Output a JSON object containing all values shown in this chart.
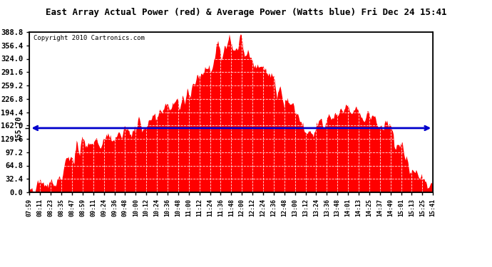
{
  "title": "East Array Actual Power (red) & Average Power (Watts blue) Fri Dec 24 15:41",
  "copyright": "Copyright 2010 Cartronics.com",
  "average_power": 155.7,
  "ylim": [
    0.0,
    388.8
  ],
  "yticks": [
    0.0,
    32.4,
    64.8,
    97.2,
    129.6,
    162.0,
    194.4,
    226.8,
    259.2,
    291.6,
    324.0,
    356.4,
    388.8
  ],
  "fill_color": "#FF0000",
  "line_color": "#0000CC",
  "background_color": "#FFFFFF",
  "grid_color": "#C0C0C0",
  "x_labels": [
    "07:59",
    "08:11",
    "08:23",
    "08:35",
    "08:47",
    "08:59",
    "09:11",
    "09:24",
    "09:36",
    "09:48",
    "10:00",
    "10:12",
    "10:24",
    "10:36",
    "10:48",
    "11:00",
    "11:12",
    "11:24",
    "11:36",
    "11:48",
    "12:00",
    "12:12",
    "12:24",
    "12:36",
    "12:48",
    "13:00",
    "13:12",
    "13:24",
    "13:36",
    "13:48",
    "14:01",
    "14:13",
    "14:25",
    "14:37",
    "14:49",
    "15:01",
    "15:13",
    "15:25",
    "15:41"
  ]
}
